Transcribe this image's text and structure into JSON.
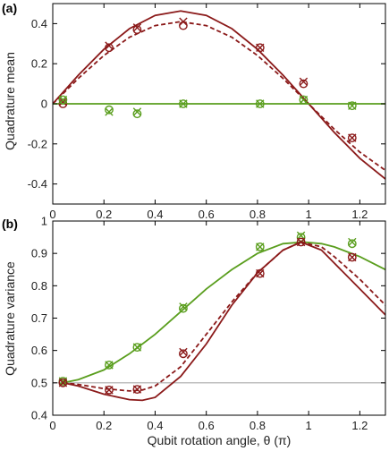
{
  "chart_data": [
    {
      "type": "scatter",
      "panel_label": "(a)",
      "ylabel": "Quadrature mean",
      "xlabel": "",
      "xlim": [
        0,
        1.3
      ],
      "ylim": [
        -0.5,
        0.5
      ],
      "xticks": [
        0,
        0.2,
        0.4,
        0.6,
        0.8,
        1,
        1.2
      ],
      "xtick_labels": [
        "0",
        "0.2",
        "0.4",
        "0.6",
        "0.8",
        "1",
        "1.2"
      ],
      "yticks": [
        -0.4,
        -0.2,
        0,
        0.2,
        0.4
      ],
      "ytick_labels": [
        "-0.4",
        "-0.2",
        "0",
        "0.2",
        "0.4"
      ],
      "grid": false,
      "lines": [
        {
          "color": "#8b1a1a",
          "style": "solid",
          "x": [
            0,
            0.1,
            0.2,
            0.3,
            0.4,
            0.5,
            0.6,
            0.7,
            0.8,
            0.9,
            1.0,
            1.1,
            1.2,
            1.3
          ],
          "y": [
            0,
            0.143,
            0.272,
            0.375,
            0.441,
            0.463,
            0.441,
            0.375,
            0.272,
            0.143,
            0,
            -0.143,
            -0.272,
            -0.375
          ]
        },
        {
          "color": "#8b1a1a",
          "style": "dashed",
          "x": [
            0,
            0.1,
            0.2,
            0.3,
            0.4,
            0.5,
            0.6,
            0.7,
            0.8,
            0.9,
            1.0,
            1.1,
            1.2,
            1.3
          ],
          "y": [
            0,
            0.127,
            0.241,
            0.332,
            0.39,
            0.41,
            0.39,
            0.332,
            0.241,
            0.127,
            0,
            -0.127,
            -0.241,
            -0.332
          ]
        },
        {
          "color": "#5a9e1e",
          "style": "solid",
          "x": [
            0,
            1.3
          ],
          "y": [
            0,
            0
          ]
        }
      ],
      "series": [
        {
          "color": "#8b1a1a",
          "marker": "x",
          "x": [
            0.04,
            0.22,
            0.33,
            0.51,
            0.81,
            0.98,
            1.17
          ],
          "y": [
            0.01,
            0.29,
            0.38,
            0.41,
            0.28,
            0.11,
            -0.17
          ]
        },
        {
          "color": "#8b1a1a",
          "marker": "o",
          "x": [
            0.04,
            0.22,
            0.33,
            0.51,
            0.81,
            0.98,
            1.17
          ],
          "y": [
            0.0,
            0.28,
            0.37,
            0.39,
            0.28,
            0.1,
            -0.17
          ]
        },
        {
          "color": "#5a9e1e",
          "marker": "x",
          "x": [
            0.04,
            0.22,
            0.33,
            0.51,
            0.81,
            0.98,
            1.17
          ],
          "y": [
            0.02,
            -0.04,
            -0.04,
            0.0,
            0.0,
            0.02,
            -0.01
          ]
        },
        {
          "color": "#5a9e1e",
          "marker": "o",
          "x": [
            0.04,
            0.22,
            0.33,
            0.51,
            0.81,
            0.98,
            1.17
          ],
          "y": [
            0.02,
            -0.03,
            -0.05,
            0.0,
            0.0,
            0.02,
            -0.01
          ]
        }
      ]
    },
    {
      "type": "scatter",
      "panel_label": "(b)",
      "ylabel": "Quadrature variance",
      "xlabel": "Qubit rotation angle, θ (π)",
      "xlim": [
        0,
        1.3
      ],
      "ylim": [
        0.4,
        1.0
      ],
      "xticks": [
        0,
        0.2,
        0.4,
        0.6,
        0.8,
        1,
        1.2
      ],
      "xtick_labels": [
        "0",
        "0.2",
        "0.4",
        "0.6",
        "0.8",
        "1",
        "1.2"
      ],
      "yticks": [
        0.4,
        0.5,
        0.6,
        0.7,
        0.8,
        0.9,
        1.0
      ],
      "ytick_labels": [
        "0.4",
        "0.5",
        "0.6",
        "0.7",
        "0.8",
        "0.9",
        "1"
      ],
      "grid": false,
      "lines": [
        {
          "color": "#aaaaaa",
          "style": "solid",
          "x": [
            0,
            1.3
          ],
          "y": [
            0.5,
            0.5
          ]
        },
        {
          "color": "#5a9e1e",
          "style": "solid",
          "x": [
            0.04,
            0.1,
            0.2,
            0.3,
            0.4,
            0.5,
            0.6,
            0.7,
            0.8,
            0.9,
            0.98,
            1.05,
            1.1,
            1.2,
            1.3
          ],
          "y": [
            0.5,
            0.51,
            0.54,
            0.59,
            0.65,
            0.72,
            0.79,
            0.85,
            0.9,
            0.93,
            0.935,
            0.93,
            0.92,
            0.89,
            0.85
          ]
        },
        {
          "color": "#8b1a1a",
          "style": "solid",
          "x": [
            0.04,
            0.1,
            0.2,
            0.3,
            0.35,
            0.4,
            0.5,
            0.6,
            0.7,
            0.8,
            0.9,
            0.97,
            1.05,
            1.1,
            1.2,
            1.3
          ],
          "y": [
            0.5,
            0.49,
            0.465,
            0.448,
            0.446,
            0.455,
            0.52,
            0.62,
            0.74,
            0.84,
            0.91,
            0.935,
            0.91,
            0.87,
            0.79,
            0.71
          ]
        },
        {
          "color": "#8b1a1a",
          "style": "dashed",
          "x": [
            0.04,
            0.1,
            0.2,
            0.3,
            0.35,
            0.4,
            0.5,
            0.6,
            0.7,
            0.8,
            0.9,
            0.97,
            1.05,
            1.1,
            1.2,
            1.3
          ],
          "y": [
            0.5,
            0.495,
            0.482,
            0.475,
            0.478,
            0.49,
            0.55,
            0.65,
            0.75,
            0.84,
            0.91,
            0.935,
            0.92,
            0.89,
            0.82,
            0.74
          ]
        }
      ],
      "series": [
        {
          "color": "#5a9e1e",
          "marker": "x",
          "x": [
            0.04,
            0.22,
            0.33,
            0.51,
            0.81,
            0.97,
            1.17
          ],
          "y": [
            0.505,
            0.555,
            0.61,
            0.735,
            0.92,
            0.955,
            0.935
          ]
        },
        {
          "color": "#5a9e1e",
          "marker": "o",
          "x": [
            0.04,
            0.22,
            0.33,
            0.51,
            0.81,
            0.97,
            1.17
          ],
          "y": [
            0.505,
            0.555,
            0.61,
            0.73,
            0.92,
            0.95,
            0.93
          ]
        },
        {
          "color": "#8b1a1a",
          "marker": "x",
          "x": [
            0.04,
            0.22,
            0.33,
            0.51,
            0.81,
            0.97,
            1.17
          ],
          "y": [
            0.5,
            0.478,
            0.48,
            0.595,
            0.838,
            0.935,
            0.888
          ]
        },
        {
          "color": "#8b1a1a",
          "marker": "o",
          "x": [
            0.04,
            0.22,
            0.33,
            0.51,
            0.81,
            0.97,
            1.17
          ],
          "y": [
            0.5,
            0.478,
            0.48,
            0.59,
            0.838,
            0.935,
            0.888
          ]
        }
      ]
    }
  ]
}
